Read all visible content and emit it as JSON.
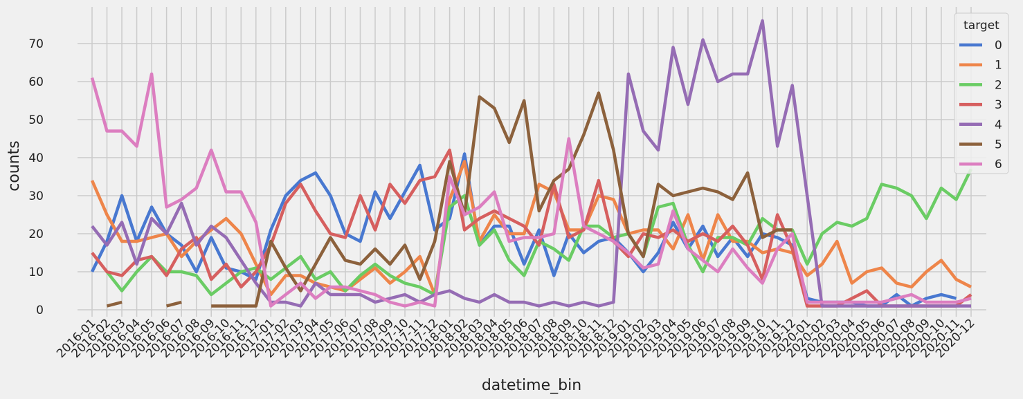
{
  "chart_data": {
    "type": "line",
    "xlabel": "datetime_bin",
    "ylabel": "counts",
    "ylim": [
      -2,
      79
    ],
    "yticks": [
      0,
      10,
      20,
      30,
      40,
      50,
      60,
      70
    ],
    "grid": true,
    "legend": {
      "title": "target",
      "placement": "top-right"
    },
    "categories": [
      "2016-01",
      "2016-02",
      "2016-03",
      "2016-04",
      "2016-05",
      "2016-06",
      "2016-07",
      "2016-08",
      "2016-09",
      "2016-10",
      "2016-11",
      "2016-12",
      "2017-01",
      "2017-02",
      "2017-03",
      "2017-04",
      "2017-05",
      "2017-06",
      "2017-07",
      "2017-08",
      "2017-09",
      "2017-10",
      "2017-11",
      "2017-12",
      "2018-01",
      "2018-02",
      "2018-03",
      "2018-04",
      "2018-05",
      "2018-06",
      "2018-07",
      "2018-08",
      "2018-09",
      "2018-10",
      "2018-11",
      "2018-12",
      "2019-01",
      "2019-02",
      "2019-03",
      "2019-04",
      "2019-05",
      "2019-06",
      "2019-07",
      "2019-08",
      "2019-09",
      "2019-10",
      "2019-11",
      "2019-12",
      "2020-01",
      "2020-02",
      "2020-03",
      "2020-04",
      "2020-05",
      "2020-06",
      "2020-07",
      "2020-08",
      "2020-09",
      "2020-10",
      "2020-11",
      "2020-12"
    ],
    "series": [
      {
        "name": "0",
        "color": "#4878d0",
        "values": [
          10,
          18,
          30,
          18,
          27,
          20,
          17,
          10,
          19,
          11,
          10,
          8,
          21,
          30,
          34,
          36,
          30,
          20,
          18,
          31,
          24,
          31,
          38,
          21,
          24,
          41,
          17,
          22,
          22,
          12,
          21,
          9,
          20,
          15,
          18,
          19,
          15,
          10,
          15,
          23,
          16,
          22,
          14,
          19,
          14,
          20,
          19,
          17,
          3,
          2,
          2,
          2,
          1,
          1,
          4,
          1,
          3,
          4,
          3,
          null
        ]
      },
      {
        "name": "1",
        "color": "#ee854a",
        "values": [
          34,
          25,
          18,
          18,
          19,
          20,
          14,
          18,
          21,
          24,
          20,
          12,
          4,
          9,
          9,
          7,
          6,
          5,
          8,
          11,
          7,
          10,
          14,
          4,
          29,
          39,
          18,
          25,
          20,
          20,
          33,
          31,
          21,
          21,
          30,
          29,
          20,
          21,
          21,
          16,
          25,
          13,
          25,
          18,
          18,
          15,
          16,
          15,
          9,
          12,
          18,
          7,
          10,
          11,
          7,
          6,
          10,
          13,
          8,
          6
        ]
      },
      {
        "name": "2",
        "color": "#6acc64",
        "values": [
          null,
          10,
          5,
          10,
          14,
          10,
          10,
          9,
          4,
          7,
          10,
          11,
          8,
          11,
          14,
          8,
          10,
          5,
          9,
          12,
          9,
          7,
          6,
          4,
          27,
          30,
          17,
          21,
          13,
          9,
          18,
          16,
          13,
          22,
          22,
          19,
          20,
          14,
          27,
          28,
          17,
          10,
          19,
          19,
          17,
          24,
          21,
          21,
          12,
          20,
          23,
          22,
          24,
          33,
          32,
          30,
          24,
          32,
          29,
          37
        ]
      },
      {
        "name": "3",
        "color": "#d65f5f",
        "values": [
          15,
          10,
          9,
          13,
          14,
          9,
          16,
          19,
          8,
          12,
          6,
          10,
          17,
          28,
          33,
          26,
          20,
          19,
          30,
          21,
          33,
          28,
          34,
          35,
          42,
          21,
          24,
          26,
          24,
          22,
          17,
          33,
          19,
          21,
          34,
          18,
          14,
          20,
          19,
          21,
          18,
          20,
          18,
          22,
          17,
          8,
          25,
          16,
          1,
          1,
          1,
          3,
          5,
          1,
          1,
          1,
          1,
          1,
          1,
          4
        ]
      },
      {
        "name": "4",
        "color": "#956cb4",
        "values": [
          22,
          17,
          23,
          12,
          24,
          20,
          28,
          17,
          22,
          19,
          13,
          7,
          2,
          2,
          1,
          7,
          4,
          4,
          4,
          2,
          3,
          4,
          2,
          4,
          5,
          3,
          2,
          4,
          2,
          2,
          1,
          2,
          1,
          2,
          1,
          2,
          62,
          47,
          42,
          69,
          54,
          71,
          60,
          62,
          62,
          76,
          43,
          59,
          30,
          1,
          1,
          1,
          1,
          1,
          1,
          1,
          1,
          1,
          1,
          1
        ]
      },
      {
        "name": "5",
        "color": "#8c613c",
        "values": [
          null,
          1,
          2,
          null,
          null,
          1,
          2,
          null,
          1,
          1,
          1,
          1,
          18,
          11,
          5,
          12,
          19,
          13,
          12,
          16,
          12,
          17,
          8,
          18,
          39,
          25,
          56,
          53,
          44,
          55,
          26,
          34,
          37,
          46,
          57,
          42,
          20,
          14,
          33,
          30,
          31,
          32,
          31,
          29,
          36,
          19,
          21,
          21,
          null,
          null,
          null,
          null,
          null,
          null,
          null,
          null,
          null,
          null,
          null,
          null
        ]
      },
      {
        "name": "6",
        "color": "#dc7ec0",
        "values": [
          61,
          47,
          47,
          43,
          62,
          27,
          29,
          32,
          42,
          31,
          31,
          23,
          1,
          4,
          7,
          3,
          6,
          6,
          5,
          4,
          2,
          1,
          2,
          1,
          35,
          25,
          27,
          31,
          18,
          19,
          19,
          20,
          45,
          22,
          20,
          18,
          15,
          11,
          12,
          26,
          16,
          13,
          10,
          16,
          11,
          7,
          16,
          20,
          2,
          2,
          2,
          2,
          2,
          2,
          3,
          4,
          2,
          2,
          2,
          3
        ]
      }
    ]
  }
}
